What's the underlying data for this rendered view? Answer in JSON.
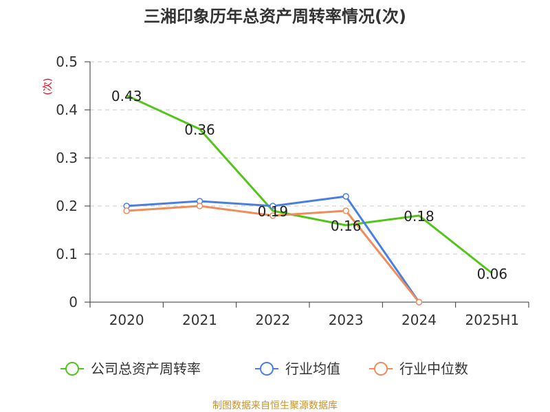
{
  "chart_data": {
    "type": "line",
    "title": "三湘印象历年总资产周转率情况(次)",
    "ylabel": "(次)",
    "categories": [
      "2020",
      "2021",
      "2022",
      "2023",
      "2024",
      "2025H1"
    ],
    "ylim": [
      0,
      0.5
    ],
    "yticks": [
      0,
      0.1,
      0.2,
      0.3,
      0.4,
      0.5
    ],
    "grid": true,
    "legend_position": "bottom",
    "series": [
      {
        "name": "公司总资产周转率",
        "color": "#52c41a",
        "values": [
          0.43,
          0.36,
          0.19,
          0.16,
          0.18,
          0.06
        ],
        "labels": [
          "0.43",
          "0.36",
          "0.19",
          "0.16",
          "0.18",
          "0.06"
        ]
      },
      {
        "name": "行业均值",
        "color": "#4a7fe0",
        "values": [
          0.2,
          0.21,
          0.2,
          0.22,
          0.0,
          null
        ]
      },
      {
        "name": "行业中位数",
        "color": "#f08c5a",
        "values": [
          0.19,
          0.2,
          0.18,
          0.19,
          0.0,
          null
        ]
      }
    ],
    "source": "制图数据来自恒生聚源数据库"
  }
}
